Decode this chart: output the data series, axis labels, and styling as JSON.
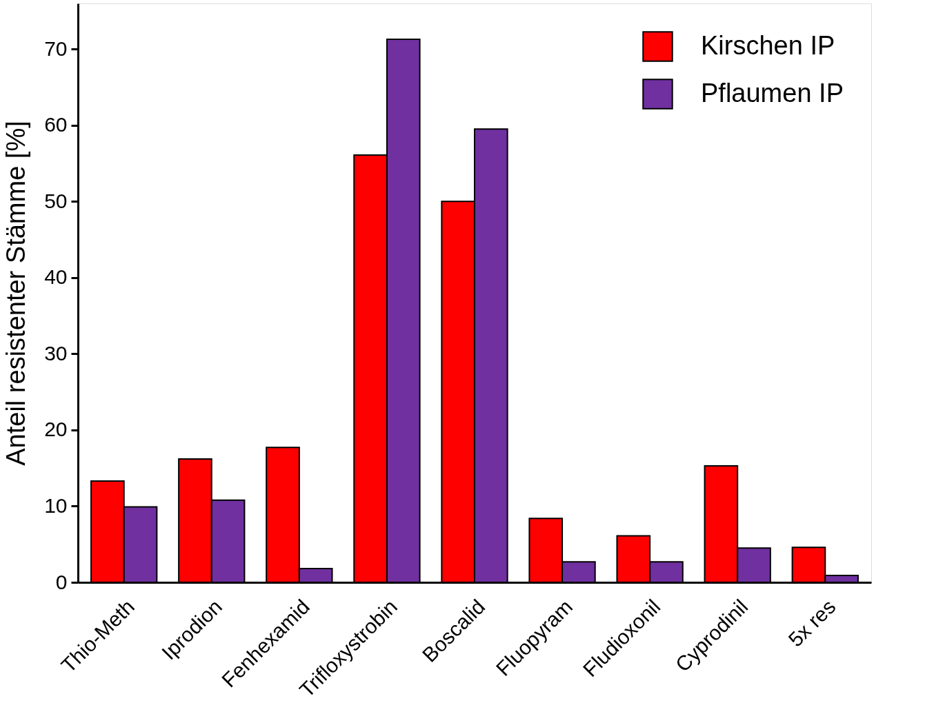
{
  "chart_data": {
    "type": "bar",
    "ylabel": "Anteil resistenter Stämme [%]",
    "categories": [
      "Thio-Meth",
      "Iprodion",
      "Fenhexamid",
      "Trifloxystrobin",
      "Boscalid",
      "Fluopyram",
      "Fludioxonil",
      "Cyprodinil",
      "5x res"
    ],
    "series": [
      {
        "name": "Kirschen IP",
        "color": "#ff0000",
        "values": [
          13.3,
          16.2,
          17.7,
          56.1,
          50.0,
          8.4,
          6.1,
          15.3,
          4.6
        ]
      },
      {
        "name": "Pflaumen IP",
        "color": "#7030a0",
        "values": [
          9.9,
          10.8,
          1.8,
          71.3,
          59.5,
          2.7,
          2.7,
          4.5,
          0.9
        ]
      }
    ],
    "ylim": [
      0,
      76
    ],
    "yticks": [
      0,
      10,
      20,
      30,
      40,
      50,
      60,
      70
    ],
    "grid": false,
    "legend": "top right"
  }
}
